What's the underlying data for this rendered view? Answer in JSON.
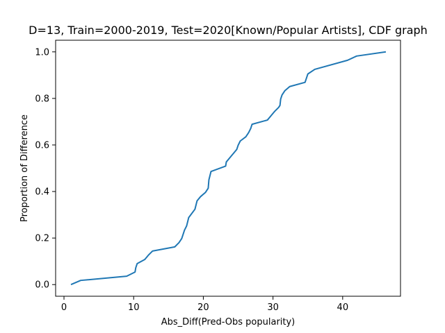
{
  "chart_data": {
    "type": "line",
    "title": "D=13, Train=2000-2019, Test=2020[Known/Popular Artists], CDF graph",
    "xlabel": "Abs_Diff(Pred-Obs popularity)",
    "ylabel": "Proportion of Difference",
    "xlim": [
      -1.2,
      48.3
    ],
    "ylim": [
      -0.05,
      1.05
    ],
    "xticks": [
      0,
      10,
      20,
      30,
      40
    ],
    "yticks": [
      0.0,
      0.2,
      0.4,
      0.6,
      0.8,
      1.0
    ],
    "xtick_labels": [
      "0",
      "10",
      "20",
      "30",
      "40"
    ],
    "ytick_labels": [
      "0.0",
      "0.2",
      "0.4",
      "0.6",
      "0.8",
      "1.0"
    ],
    "grid": false,
    "color": "#1f77b4",
    "series": [
      {
        "x": [
          1.0,
          2.4,
          9.0,
          10.2,
          10.3,
          10.5,
          11.6,
          12.1,
          12.7,
          15.9,
          16.5,
          16.9,
          17.3,
          17.6,
          17.9,
          18.8,
          19.1,
          19.6,
          20.3,
          20.7,
          20.8,
          21.1,
          23.2,
          23.3,
          23.8,
          24.3,
          24.8,
          25.0,
          25.3,
          26.1,
          26.5,
          26.8,
          27.0,
          29.2,
          29.7,
          30.2,
          30.8,
          31.0,
          31.1,
          31.3,
          31.7,
          32.4,
          34.6,
          35.0,
          36.0,
          40.7,
          42.0,
          46.2
        ],
        "y": [
          0.0,
          0.018,
          0.036,
          0.054,
          0.072,
          0.09,
          0.108,
          0.126,
          0.144,
          0.162,
          0.18,
          0.198,
          0.234,
          0.252,
          0.288,
          0.324,
          0.36,
          0.378,
          0.396,
          0.414,
          0.45,
          0.486,
          0.509,
          0.527,
          0.545,
          0.563,
          0.581,
          0.599,
          0.617,
          0.635,
          0.653,
          0.671,
          0.689,
          0.707,
          0.725,
          0.743,
          0.761,
          0.77,
          0.797,
          0.815,
          0.833,
          0.851,
          0.869,
          0.905,
          0.925,
          0.964,
          0.982,
          1.0
        ]
      }
    ]
  }
}
